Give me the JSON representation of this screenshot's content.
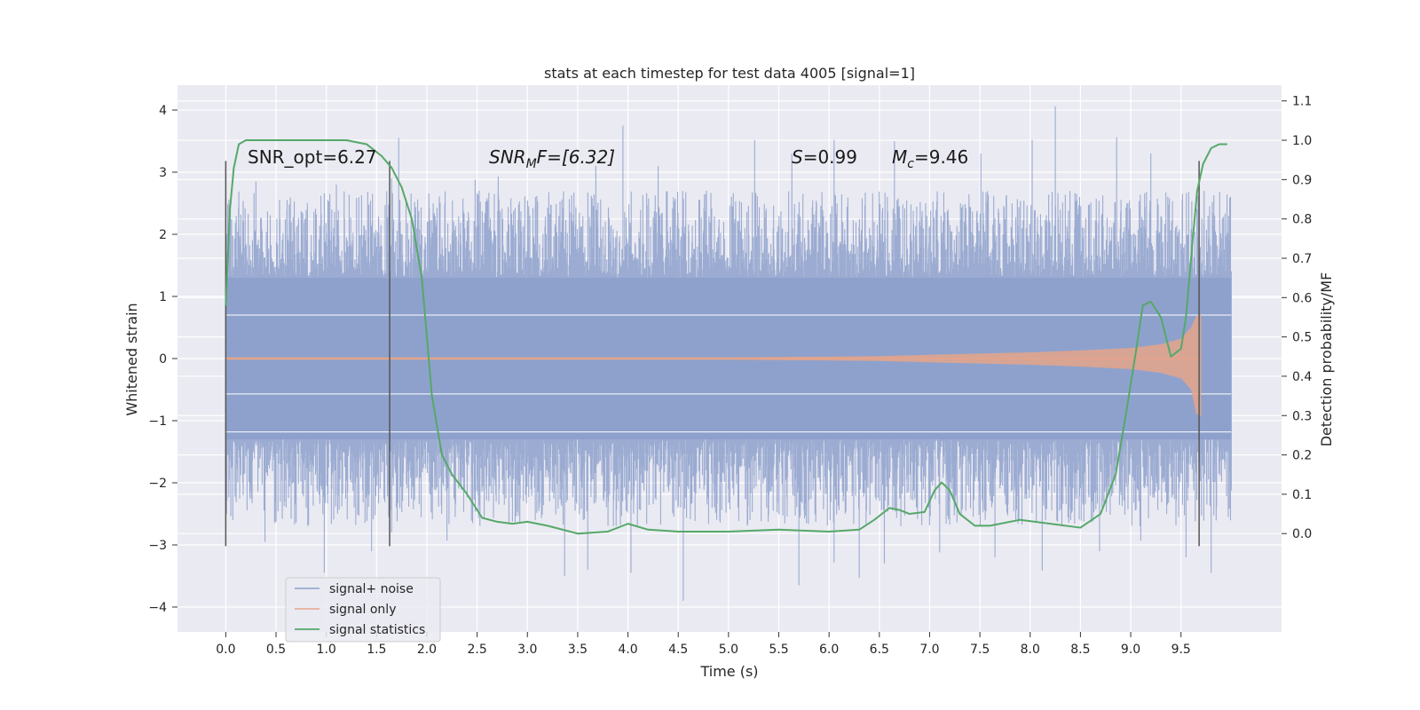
{
  "chart_data": {
    "type": "line",
    "title": "stats at each timestep for test data 4005 [signal=1]",
    "xlabel": "Time (s)",
    "ylabel_left": "Whitened strain",
    "ylabel_right": "Detection probability/MF",
    "xlim": [
      -0.48,
      10.5
    ],
    "ylim_left": [
      -4.4,
      4.4
    ],
    "ylim_right": [
      -0.25,
      1.14
    ],
    "x_ticks": [
      0.0,
      0.5,
      1.0,
      1.5,
      2.0,
      2.5,
      3.0,
      3.5,
      4.0,
      4.5,
      5.0,
      5.5,
      6.0,
      6.5,
      7.0,
      7.5,
      8.0,
      8.5,
      9.0,
      9.5
    ],
    "x_tick_labels": [
      "0.0",
      "0.5",
      "1.0",
      "1.5",
      "2.0",
      "2.5",
      "3.0",
      "3.5",
      "4.0",
      "4.5",
      "5.0",
      "5.5",
      "6.0",
      "6.5",
      "7.0",
      "7.5",
      "8.0",
      "8.5",
      "9.0",
      "9.5"
    ],
    "y_left_ticks": [
      4,
      3,
      2,
      1,
      0,
      -1,
      -2,
      -3,
      -4
    ],
    "y_left_tick_labels": [
      "4",
      "3",
      "2",
      "1",
      "0",
      "−1",
      "−2",
      "−3",
      "−4"
    ],
    "y_right_ticks": [
      1.1,
      1.0,
      0.9,
      0.8,
      0.7,
      0.6,
      0.5,
      0.4,
      0.3,
      0.2,
      0.1,
      0.0
    ],
    "y_right_tick_labels": [
      "1.1",
      "1.0",
      "0.9",
      "0.8",
      "0.7",
      "0.6",
      "0.5",
      "0.4",
      "0.3",
      "0.2",
      "0.1",
      "0.0"
    ],
    "grid": true,
    "legend_placement": "lower-left",
    "annotations": {
      "snr_opt": "SNR_opt=6.27",
      "snr_mf_main": "SNR",
      "snr_mf_sub": "M",
      "snr_mf_rest": "F=[6.32]",
      "s_label": "S",
      "s_value": "=0.99",
      "mc_main": "M",
      "mc_sub": "c",
      "mc_value": "=9.46"
    },
    "vertical_markers": {
      "x": [
        0.0,
        1.63,
        9.68
      ],
      "y_range": [
        -3.02,
        3.18
      ]
    },
    "series": [
      {
        "name": "signal+ noise",
        "color": "#8da0cb",
        "x_range": [
          0.0,
          10.0
        ],
        "envelope": {
          "core": [
            -1.3,
            1.3
          ],
          "max_upper_peak": 4.06,
          "max_upper_peak_x": 8.25,
          "min_lower_peak": -3.9,
          "min_lower_peak_x": 4.55
        },
        "peaks_upper": [
          [
            0.04,
            2.45
          ],
          [
            0.13,
            2.69
          ],
          [
            0.3,
            2.85
          ],
          [
            0.61,
            2.55
          ],
          [
            0.98,
            2.66
          ],
          [
            1.1,
            2.8
          ],
          [
            1.72,
            3.55
          ],
          [
            1.65,
            2.9
          ],
          [
            2.48,
            2.88
          ],
          [
            2.71,
            2.93
          ],
          [
            3.08,
            2.6
          ],
          [
            3.68,
            3.1
          ],
          [
            3.95,
            3.75
          ],
          [
            4.3,
            3.1
          ],
          [
            4.78,
            2.7
          ],
          [
            5.26,
            3.52
          ],
          [
            5.63,
            3.3
          ],
          [
            5.74,
            2.65
          ],
          [
            6.05,
            3.52
          ],
          [
            6.65,
            3.5
          ],
          [
            6.96,
            2.5
          ],
          [
            7.51,
            3.3
          ],
          [
            7.82,
            2.5
          ],
          [
            8.02,
            3.52
          ],
          [
            8.25,
            4.06
          ],
          [
            8.86,
            3.56
          ],
          [
            9.2,
            3.3
          ],
          [
            9.73,
            2.7
          ],
          [
            9.97,
            1.95
          ]
        ],
        "peaks_lower": [
          [
            0.07,
            -2.6
          ],
          [
            0.39,
            -2.95
          ],
          [
            0.98,
            -3.45
          ],
          [
            1.45,
            -3.1
          ],
          [
            1.65,
            -2.8
          ],
          [
            2.2,
            -2.93
          ],
          [
            3.37,
            -3.5
          ],
          [
            3.6,
            -3.4
          ],
          [
            4.03,
            -3.45
          ],
          [
            4.55,
            -3.9
          ],
          [
            5.7,
            -3.65
          ],
          [
            6.05,
            -3.28
          ],
          [
            6.3,
            -3.53
          ],
          [
            6.55,
            -3.3
          ],
          [
            7.1,
            -3.12
          ],
          [
            7.65,
            -3.2
          ],
          [
            8.12,
            -3.41
          ],
          [
            8.69,
            -3.1
          ],
          [
            9.1,
            -2.93
          ],
          [
            9.55,
            -3.2
          ],
          [
            9.8,
            -3.45
          ],
          [
            9.97,
            -2.55
          ]
        ]
      },
      {
        "name": "signal only",
        "color": "#e5a48a",
        "x": [
          0.0,
          1.0,
          2.0,
          3.0,
          4.0,
          5.0,
          5.5,
          6.0,
          6.5,
          7.0,
          7.5,
          8.0,
          8.5,
          9.0,
          9.3,
          9.5,
          9.6,
          9.65,
          9.7
        ],
        "amplitude": [
          0.02,
          0.02,
          0.02,
          0.02,
          0.02,
          0.02,
          0.025,
          0.03,
          0.04,
          0.06,
          0.08,
          0.1,
          0.13,
          0.17,
          0.23,
          0.32,
          0.5,
          0.68,
          0.72
        ]
      },
      {
        "name": "signal statistics",
        "color": "#55a868",
        "x": [
          0.0,
          0.04,
          0.08,
          0.13,
          0.2,
          0.3,
          0.5,
          0.8,
          1.0,
          1.2,
          1.4,
          1.55,
          1.65,
          1.75,
          1.85,
          1.95,
          2.05,
          2.15,
          2.25,
          2.4,
          2.55,
          2.7,
          2.85,
          3.0,
          3.2,
          3.5,
          3.8,
          4.0,
          4.2,
          4.5,
          5.0,
          5.5,
          6.0,
          6.3,
          6.45,
          6.6,
          6.7,
          6.8,
          6.95,
          7.05,
          7.12,
          7.2,
          7.3,
          7.45,
          7.6,
          7.9,
          8.2,
          8.5,
          8.7,
          8.85,
          8.95,
          9.05,
          9.12,
          9.2,
          9.3,
          9.4,
          9.5,
          9.55,
          9.6,
          9.66,
          9.72,
          9.8,
          9.88,
          9.96
        ],
        "y": [
          0.58,
          0.82,
          0.93,
          0.99,
          1.0,
          1.0,
          1.0,
          1.0,
          1.0,
          1.0,
          0.99,
          0.96,
          0.93,
          0.88,
          0.8,
          0.65,
          0.35,
          0.2,
          0.15,
          0.1,
          0.04,
          0.03,
          0.025,
          0.03,
          0.02,
          0.0,
          0.005,
          0.025,
          0.01,
          0.005,
          0.005,
          0.01,
          0.005,
          0.01,
          0.035,
          0.065,
          0.06,
          0.05,
          0.055,
          0.11,
          0.13,
          0.11,
          0.05,
          0.02,
          0.02,
          0.035,
          0.025,
          0.015,
          0.05,
          0.15,
          0.3,
          0.46,
          0.58,
          0.59,
          0.55,
          0.45,
          0.47,
          0.55,
          0.7,
          0.87,
          0.94,
          0.98,
          0.99,
          0.99
        ]
      }
    ]
  }
}
